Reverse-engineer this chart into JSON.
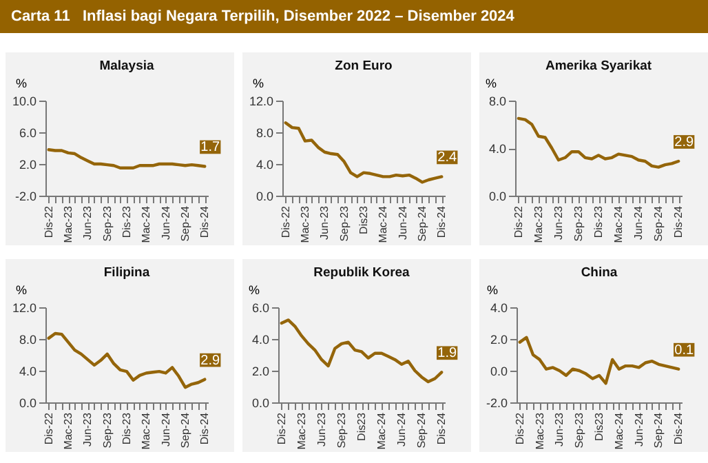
{
  "chart_data": [
    {
      "type": "other",
      "title": "Carta 11   Inflasi bagi Negara Terpilih, Disember 2022 – Disember 2024"
    },
    {
      "type": "line",
      "title": "Malaysia",
      "ylabel": "%",
      "categories": [
        "Dis-22",
        null,
        null,
        "Mac-23",
        null,
        null,
        "Jun-23",
        null,
        null,
        "Sep-23",
        null,
        null,
        "Dis-23",
        null,
        null,
        "Mac-24",
        null,
        null,
        "Jun-24",
        null,
        null,
        "Sep-24",
        null,
        null,
        "Dis-24"
      ],
      "series": [
        {
          "color": "#94650a",
          "values": [
            3.8,
            3.7,
            3.7,
            3.4,
            3.3,
            2.8,
            2.4,
            2.0,
            2.0,
            1.9,
            1.8,
            1.5,
            1.5,
            1.5,
            1.8,
            1.8,
            1.8,
            2.0,
            2.0,
            2.0,
            1.9,
            1.8,
            1.9,
            1.8,
            1.7
          ],
          "value_labels": [
            null,
            null,
            null,
            null,
            null,
            null,
            null,
            null,
            null,
            null,
            null,
            null,
            null,
            null,
            null,
            null,
            null,
            null,
            null,
            null,
            null,
            null,
            null,
            null,
            "1.7"
          ]
        }
      ],
      "ylim": [
        -2,
        10
      ],
      "yticks": [
        {
          "value": -2,
          "label": "-2.0"
        },
        {
          "value": 2,
          "label": "2.0"
        },
        {
          "value": 6,
          "label": "6.0"
        },
        {
          "value": 10,
          "label": "10.0"
        }
      ]
    },
    {
      "type": "line",
      "title": "Zon Euro",
      "ylabel": "%",
      "categories": [
        "Dis-22",
        null,
        null,
        "Mac-23",
        null,
        null,
        "Jun-23",
        null,
        null,
        "Sep-23",
        null,
        null,
        "Dis23",
        null,
        null,
        "Mac-24",
        null,
        null,
        "Jun-24",
        null,
        null,
        "Sep-24",
        null,
        null,
        "Dis-24"
      ],
      "series": [
        {
          "color": "#94650a",
          "values": [
            9.2,
            8.6,
            8.5,
            6.9,
            7.0,
            6.1,
            5.5,
            5.3,
            5.2,
            4.3,
            2.9,
            2.4,
            2.9,
            2.8,
            2.6,
            2.4,
            2.4,
            2.6,
            2.5,
            2.6,
            2.2,
            1.7,
            2.0,
            2.2,
            2.4
          ],
          "value_labels": [
            null,
            null,
            null,
            null,
            null,
            null,
            null,
            null,
            null,
            null,
            null,
            null,
            null,
            null,
            null,
            null,
            null,
            null,
            null,
            null,
            null,
            null,
            null,
            null,
            "2.4"
          ]
        }
      ],
      "ylim": [
        0,
        12
      ],
      "yticks": [
        {
          "value": 0,
          "label": "0.0"
        },
        {
          "value": 4,
          "label": "4.0"
        },
        {
          "value": 8,
          "label": "8.0"
        },
        {
          "value": 12,
          "label": "12.0"
        }
      ]
    },
    {
      "type": "line",
      "title": "Amerika Syarikat",
      "ylabel": "%",
      "categories": [
        "Dis-22",
        null,
        null,
        "Mac-23",
        null,
        null,
        "Jun-23",
        null,
        null,
        "Sep-23",
        null,
        null,
        "Dis-23",
        null,
        null,
        "Mac-24",
        null,
        null,
        "Jun-24",
        null,
        null,
        "Sep-24",
        null,
        null,
        "Dis-24"
      ],
      "series": [
        {
          "color": "#94650a",
          "values": [
            6.5,
            6.4,
            6.0,
            5.0,
            4.9,
            4.0,
            3.0,
            3.2,
            3.7,
            3.7,
            3.2,
            3.1,
            3.4,
            3.1,
            3.2,
            3.5,
            3.4,
            3.3,
            3.0,
            2.9,
            2.5,
            2.4,
            2.6,
            2.7,
            2.9
          ],
          "value_labels": [
            null,
            null,
            null,
            null,
            null,
            null,
            null,
            null,
            null,
            null,
            null,
            null,
            null,
            null,
            null,
            null,
            null,
            null,
            null,
            null,
            null,
            null,
            null,
            null,
            "2.9"
          ]
        }
      ],
      "ylim": [
        0,
        8
      ],
      "yticks": [
        {
          "value": 0,
          "label": "0.0"
        },
        {
          "value": 4,
          "label": "4.0"
        },
        {
          "value": 8,
          "label": "8.0"
        }
      ]
    },
    {
      "type": "line",
      "title": "Filipina",
      "ylabel": "%",
      "categories": [
        "Dis-22",
        null,
        null,
        "Mac-23",
        null,
        null,
        "Jun-23",
        null,
        null,
        "Sep-23",
        null,
        null,
        "Dis-23",
        null,
        null,
        "Mac-24",
        null,
        null,
        "Jun-24",
        null,
        null,
        "Sep-24",
        null,
        null,
        "Dis-24"
      ],
      "series": [
        {
          "color": "#94650a",
          "values": [
            8.1,
            8.7,
            8.6,
            7.6,
            6.6,
            6.1,
            5.4,
            4.7,
            5.3,
            6.1,
            4.9,
            4.1,
            3.9,
            2.8,
            3.4,
            3.7,
            3.8,
            3.9,
            3.7,
            4.4,
            3.3,
            1.9,
            2.3,
            2.5,
            2.9
          ],
          "value_labels": [
            null,
            null,
            null,
            null,
            null,
            null,
            null,
            null,
            null,
            null,
            null,
            null,
            null,
            null,
            null,
            null,
            null,
            null,
            null,
            null,
            null,
            null,
            null,
            null,
            "2.9"
          ]
        }
      ],
      "ylim": [
        0,
        12
      ],
      "yticks": [
        {
          "value": 0,
          "label": "0.0"
        },
        {
          "value": 4,
          "label": "4.0"
        },
        {
          "value": 8,
          "label": "8.0"
        },
        {
          "value": 12,
          "label": "12.0"
        }
      ]
    },
    {
      "type": "line",
      "title": "Republik Korea",
      "ylabel": "%",
      "categories": [
        "Dis-22",
        null,
        null,
        "Mac-23",
        null,
        null,
        "Jun-23",
        null,
        null,
        "Sep-23",
        null,
        null,
        "Dis23",
        null,
        null,
        "Mac-24",
        null,
        null,
        "Jun-24",
        null,
        null,
        "Sep-24",
        null,
        null,
        "Dis-24"
      ],
      "series": [
        {
          "color": "#94650a",
          "values": [
            5.0,
            5.2,
            4.8,
            4.2,
            3.7,
            3.3,
            2.7,
            2.3,
            3.4,
            3.7,
            3.8,
            3.3,
            3.2,
            2.8,
            3.1,
            3.1,
            2.9,
            2.7,
            2.4,
            2.6,
            2.0,
            1.6,
            1.3,
            1.5,
            1.9
          ],
          "value_labels": [
            null,
            null,
            null,
            null,
            null,
            null,
            null,
            null,
            null,
            null,
            null,
            null,
            null,
            null,
            null,
            null,
            null,
            null,
            null,
            null,
            null,
            null,
            null,
            null,
            "1.9"
          ]
        }
      ],
      "ylim": [
        0,
        6
      ],
      "yticks": [
        {
          "value": 0,
          "label": "0.0"
        },
        {
          "value": 2,
          "label": "2.0"
        },
        {
          "value": 4,
          "label": "4.0"
        },
        {
          "value": 6,
          "label": "6.0"
        }
      ]
    },
    {
      "type": "line",
      "title": "China",
      "ylabel": "%",
      "categories": [
        "Dis-22",
        null,
        null,
        "Mac-23",
        null,
        null,
        "Jun-23",
        null,
        null,
        "Sep-23",
        null,
        null,
        "Dis23",
        null,
        null,
        "Mac-24",
        null,
        null,
        "Jun-24",
        null,
        null,
        "Sep-24",
        null,
        null,
        "Dis-24"
      ],
      "series": [
        {
          "color": "#94650a",
          "values": [
            1.8,
            2.1,
            1.0,
            0.7,
            0.1,
            0.2,
            0.0,
            -0.3,
            0.1,
            0.0,
            -0.2,
            -0.5,
            -0.3,
            -0.8,
            0.7,
            0.1,
            0.3,
            0.3,
            0.2,
            0.5,
            0.6,
            0.4,
            0.3,
            0.2,
            0.1
          ],
          "value_labels": [
            null,
            null,
            null,
            null,
            null,
            null,
            null,
            null,
            null,
            null,
            null,
            null,
            null,
            null,
            null,
            null,
            null,
            null,
            null,
            null,
            null,
            null,
            null,
            null,
            "0.1"
          ]
        }
      ],
      "ylim": [
        -2,
        4
      ],
      "yticks": [
        {
          "value": -2,
          "label": "-2.0"
        },
        {
          "value": 0,
          "label": "0.0"
        },
        {
          "value": 2,
          "label": "2.0"
        },
        {
          "value": 4,
          "label": "4.0"
        }
      ]
    }
  ]
}
